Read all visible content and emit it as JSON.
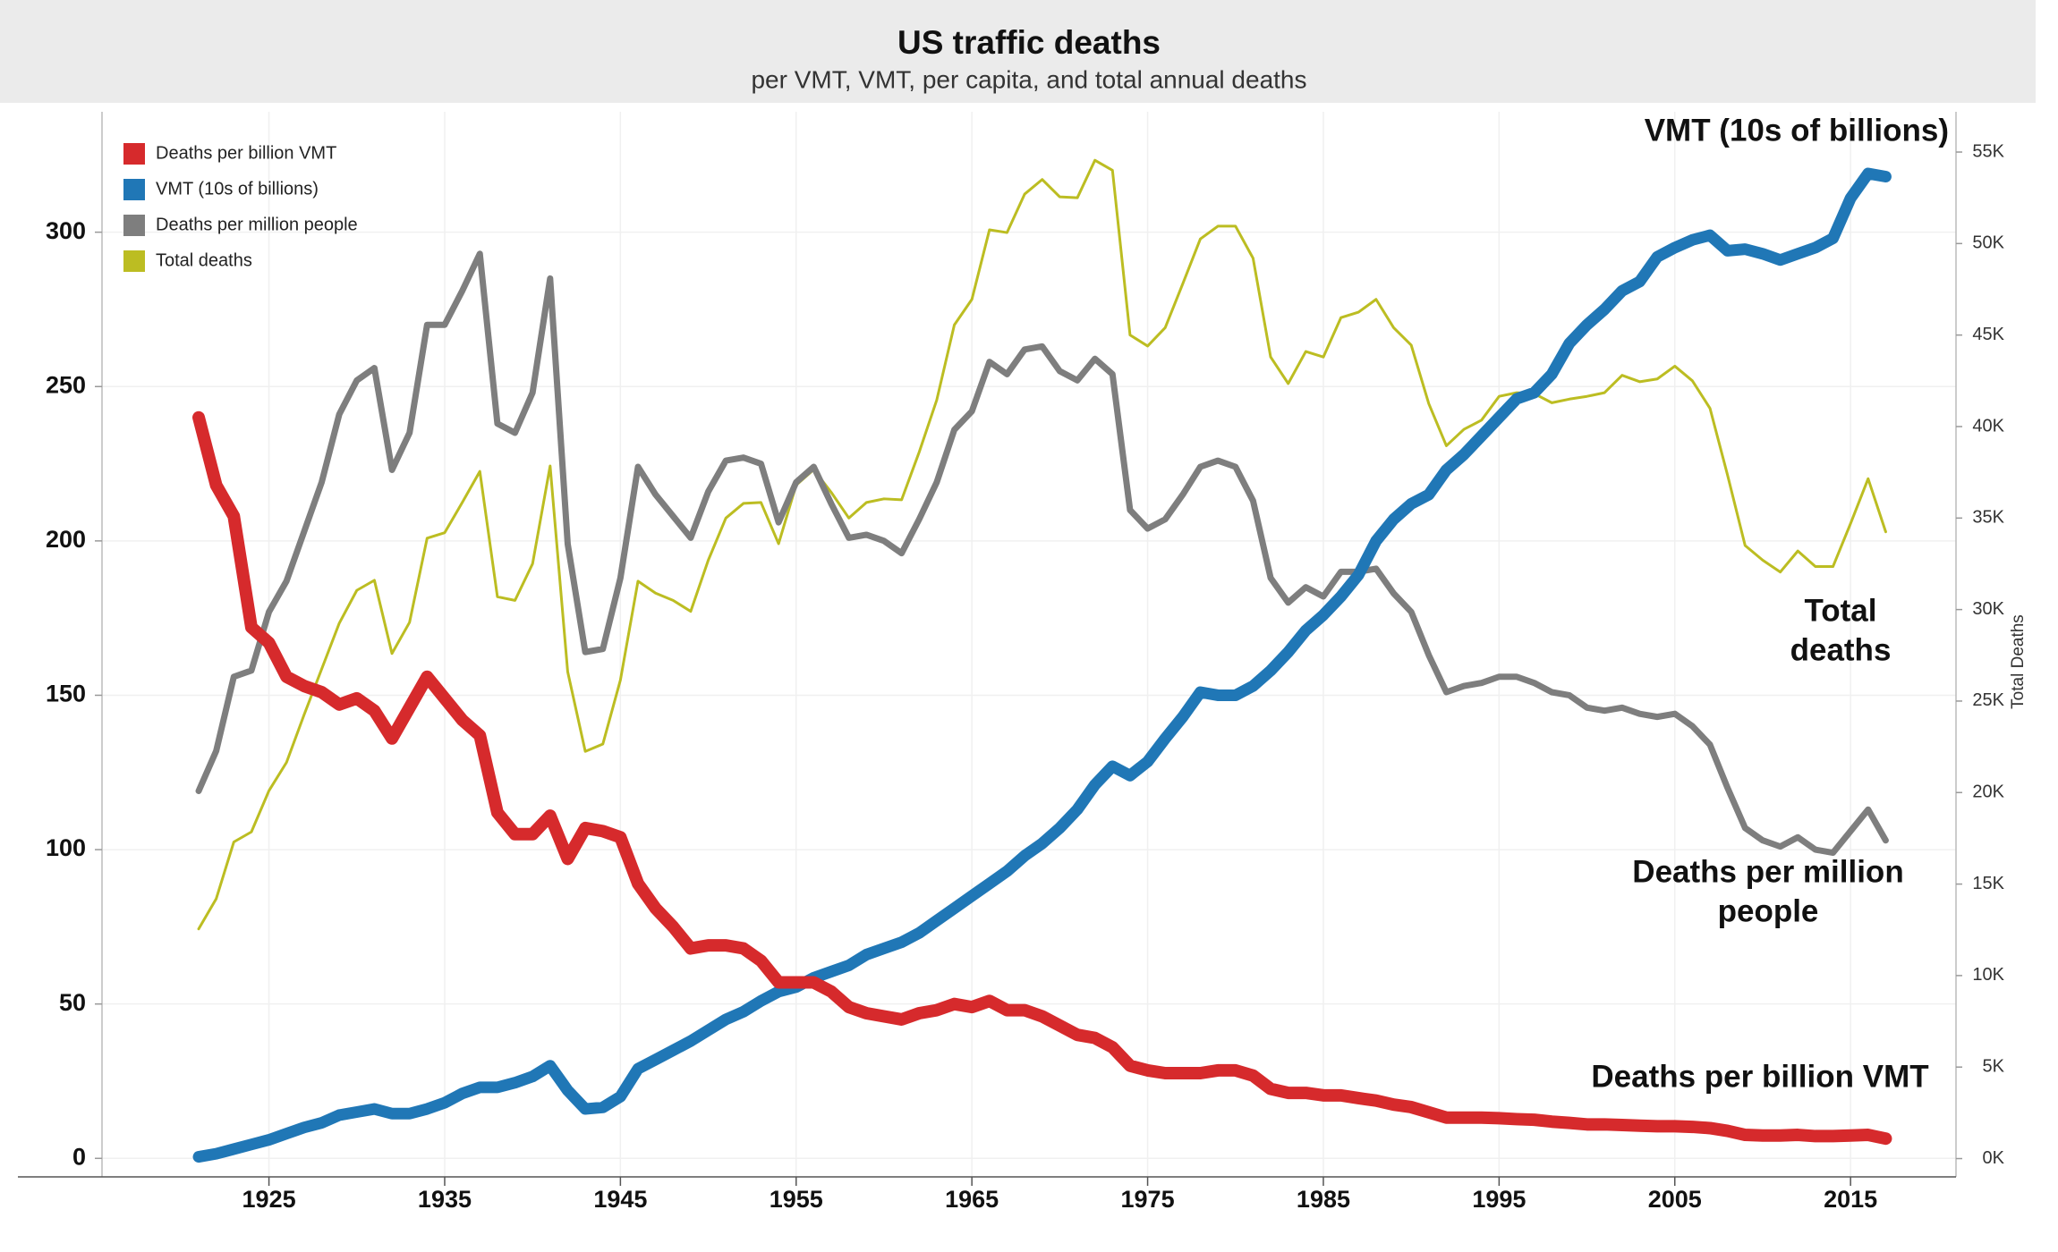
{
  "chart_data": {
    "type": "line",
    "title": "US traffic deaths",
    "subtitle": "per VMT, VMT, per capita, and total annual deaths",
    "y2label": "Total Deaths",
    "xlim": [
      1915.5,
      2021
    ],
    "xticks": [
      1925,
      1935,
      1945,
      1955,
      1965,
      1975,
      1985,
      1995,
      2005,
      2015
    ],
    "ylim": [
      -6,
      339
    ],
    "yticks": [
      0,
      50,
      100,
      150,
      200,
      250,
      300
    ],
    "y2lim": [
      -1000,
      57200
    ],
    "y2ticks": [
      {
        "value": 0,
        "label": "0K"
      },
      {
        "value": 5000,
        "label": "5K"
      },
      {
        "value": 10000,
        "label": "10K"
      },
      {
        "value": 15000,
        "label": "15K"
      },
      {
        "value": 20000,
        "label": "20K"
      },
      {
        "value": 25000,
        "label": "25K"
      },
      {
        "value": 30000,
        "label": "30K"
      },
      {
        "value": 35000,
        "label": "35K"
      },
      {
        "value": 40000,
        "label": "40K"
      },
      {
        "value": 45000,
        "label": "45K"
      },
      {
        "value": 50000,
        "label": "50K"
      },
      {
        "value": 55000,
        "label": "55K"
      }
    ],
    "grid": true,
    "legend": "top-left",
    "x": [
      1921,
      1922,
      1923,
      1924,
      1925,
      1926,
      1927,
      1928,
      1929,
      1930,
      1931,
      1932,
      1933,
      1934,
      1935,
      1936,
      1937,
      1938,
      1939,
      1940,
      1941,
      1942,
      1943,
      1944,
      1945,
      1946,
      1947,
      1948,
      1949,
      1950,
      1951,
      1952,
      1953,
      1954,
      1955,
      1956,
      1957,
      1958,
      1959,
      1960,
      1961,
      1962,
      1963,
      1964,
      1965,
      1966,
      1967,
      1968,
      1969,
      1970,
      1971,
      1972,
      1973,
      1974,
      1975,
      1976,
      1977,
      1978,
      1979,
      1980,
      1981,
      1982,
      1983,
      1984,
      1985,
      1986,
      1987,
      1988,
      1989,
      1990,
      1991,
      1992,
      1993,
      1994,
      1995,
      1996,
      1997,
      1998,
      1999,
      2000,
      2001,
      2002,
      2003,
      2004,
      2005,
      2006,
      2007,
      2008,
      2009,
      2010,
      2011,
      2012,
      2013,
      2014,
      2015,
      2016,
      2017
    ],
    "series": [
      {
        "name": "Deaths per billion VMT",
        "color": "#d62a2c",
        "width": 14,
        "values": [
          240,
          218,
          208,
          172,
          167,
          156,
          153,
          151,
          147,
          149,
          145,
          136,
          146,
          156,
          149,
          142,
          137,
          112,
          105,
          105,
          111,
          97,
          107,
          106,
          104,
          89,
          81,
          75,
          68,
          69,
          69,
          68,
          64,
          57,
          57,
          57,
          54,
          49,
          47,
          46,
          45,
          47,
          48,
          50,
          49,
          51,
          48,
          48,
          46,
          43,
          40,
          39,
          36,
          30,
          28.5,
          27.6,
          27.6,
          27.6,
          28.5,
          28.5,
          26.8,
          22.5,
          21.2,
          21.2,
          20.4,
          20.4,
          19.5,
          18.7,
          17.4,
          16.6,
          14.9,
          13.2,
          13.2,
          13.2,
          13,
          12.7,
          12.5,
          11.9,
          11.5,
          11,
          11,
          10.8,
          10.6,
          10.4,
          10.4,
          10.2,
          9.8,
          8.9,
          7.6,
          7.4,
          7.4,
          7.6,
          7.2,
          7.2,
          7.4,
          7.6,
          6.4
        ]
      },
      {
        "name": "VMT (10s of billions)",
        "color": "#2077b6",
        "width": 13,
        "values": [
          0.5,
          1.5,
          3,
          4.5,
          6,
          8,
          10,
          11.5,
          14,
          15,
          16,
          14.5,
          14.5,
          16,
          18,
          21,
          23,
          23,
          24.5,
          26.5,
          30,
          22,
          16,
          16.5,
          20,
          29,
          32,
          35,
          38,
          41.5,
          45,
          47.5,
          51,
          54,
          55.5,
          58.5,
          60.5,
          62.5,
          66,
          68,
          70,
          73,
          77,
          81,
          85,
          89,
          93,
          98,
          102,
          107,
          113,
          121,
          127,
          124,
          128.5,
          136,
          143,
          151,
          150,
          150,
          153,
          158,
          164,
          171,
          176,
          182,
          189,
          200,
          207,
          212,
          215,
          223,
          228,
          234,
          240,
          246,
          248,
          254,
          264,
          270,
          275,
          281,
          284,
          292,
          295,
          297.5,
          299,
          294,
          294.5,
          293,
          291,
          293,
          295,
          298,
          311,
          319,
          318
        ]
      },
      {
        "name": "Deaths per million people",
        "color": "#7e7e7e",
        "width": 7,
        "values": [
          119,
          132,
          156,
          158,
          177,
          187,
          203,
          219,
          241,
          252,
          256,
          223,
          235,
          270,
          270,
          281,
          293,
          238,
          235,
          248,
          285,
          199,
          164,
          165,
          188,
          224,
          215,
          208,
          201,
          216,
          226,
          227,
          225,
          206,
          219,
          224,
          212,
          201,
          202,
          200,
          196,
          207,
          219,
          236,
          242,
          258,
          254,
          262,
          263,
          255,
          252,
          259,
          254,
          210,
          204,
          207,
          215,
          224,
          226,
          224,
          213,
          188,
          180,
          185,
          182,
          190,
          190,
          191,
          183,
          177,
          163,
          151,
          153,
          154,
          156,
          156,
          154,
          151,
          150,
          146,
          145,
          146,
          144,
          143,
          144,
          140,
          134,
          120,
          107,
          103,
          101,
          104,
          100,
          99,
          106,
          113,
          103
        ]
      },
      {
        "name": "Total deaths",
        "color": "#bcbd22",
        "width": 3,
        "axis": "y2",
        "values": [
          12550,
          14200,
          17300,
          17850,
          20100,
          21650,
          24250,
          26750,
          29250,
          31050,
          31600,
          27600,
          29300,
          33900,
          34200,
          35850,
          37550,
          30700,
          30500,
          32500,
          37850,
          26600,
          22250,
          22650,
          26150,
          31550,
          30900,
          30500,
          29900,
          32700,
          35000,
          35800,
          35850,
          33600,
          36800,
          37650,
          36400,
          35000,
          35850,
          36050,
          36000,
          38600,
          41450,
          45550,
          46950,
          50750,
          50600,
          52700,
          53500,
          52550,
          52500,
          54550,
          54000,
          45000,
          44400,
          45400,
          47800,
          50250,
          50950,
          50950,
          49200,
          43800,
          42350,
          44100,
          43800,
          45950,
          46250,
          46950,
          45400,
          44450,
          41250,
          38950,
          39850,
          40350,
          41650,
          41850,
          41800,
          41300,
          41500,
          41650,
          41850,
          42800,
          42450,
          42600,
          43300,
          42500,
          41000,
          37350,
          33500,
          32700,
          32050,
          33200,
          32350,
          32350,
          34700,
          37150,
          34250
        ]
      }
    ],
    "annotations": [
      {
        "lines": [
          "VMT (10s of billions)"
        ]
      },
      {
        "lines": [
          "Total",
          "deaths"
        ]
      },
      {
        "lines": [
          "Deaths per million",
          "people"
        ]
      },
      {
        "lines": [
          "Deaths per billion VMT"
        ]
      }
    ]
  }
}
